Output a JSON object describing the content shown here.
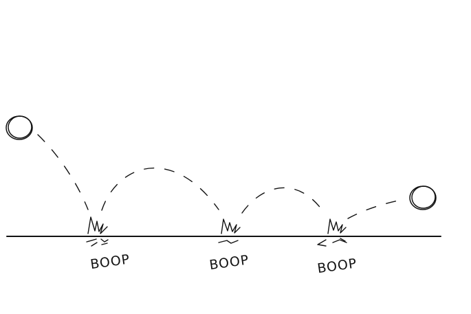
{
  "drawing": {
    "ink_color": "#111111",
    "background": "#ffffff",
    "start_ball": {
      "icon": "ball-icon"
    },
    "end_ball": {
      "icon": "ball-icon"
    },
    "impacts": [
      {
        "label": "BOOP",
        "icon": "impact-burst-icon"
      },
      {
        "label": "BOOP",
        "icon": "impact-burst-icon"
      },
      {
        "label": "BOOP",
        "icon": "impact-burst-icon"
      }
    ]
  }
}
